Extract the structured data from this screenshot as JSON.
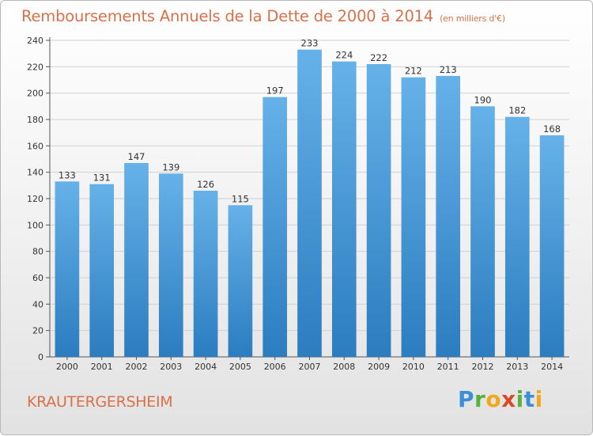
{
  "header": {
    "title": "Remboursements Annuels de la Dette de 2000 à 2014",
    "unit_note": "(en milliers d'€)"
  },
  "footer": {
    "commune": "KRAUTERGERSHEIM",
    "brand": "Proxiti"
  },
  "colors": {
    "title": "#d8714a",
    "bar_top": "#66b1e8",
    "bar_bottom": "#2b7dc0",
    "grid": "#d0d0d0",
    "axis": "#555555"
  },
  "chart_data": {
    "type": "bar",
    "title": "Remboursements Annuels de la Dette de 2000 à 2014",
    "xlabel": "",
    "ylabel": "(en milliers d'€)",
    "categories": [
      "2000",
      "2001",
      "2002",
      "2003",
      "2004",
      "2005",
      "2006",
      "2007",
      "2008",
      "2009",
      "2010",
      "2011",
      "2012",
      "2013",
      "2014"
    ],
    "values": [
      133,
      131,
      147,
      139,
      126,
      115,
      197,
      233,
      224,
      222,
      212,
      213,
      190,
      182,
      168
    ],
    "ylim": [
      0,
      240
    ],
    "yticks": [
      0,
      20,
      40,
      60,
      80,
      100,
      120,
      140,
      160,
      180,
      200,
      220,
      240
    ],
    "grid": true,
    "legend": "none"
  }
}
